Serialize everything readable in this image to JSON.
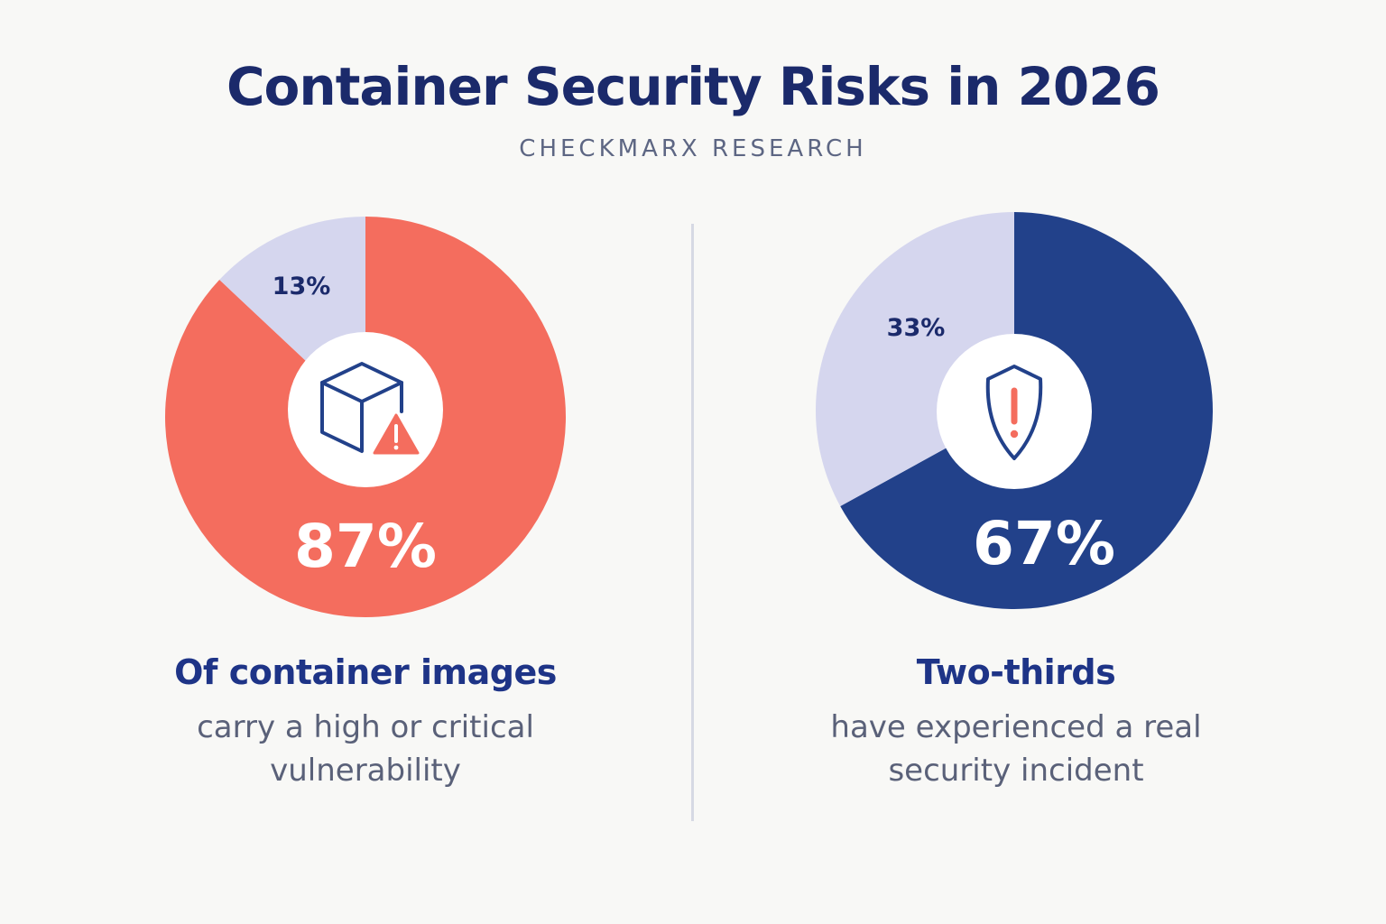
{
  "header": {
    "title": "Container Security Risks in 2026",
    "subtitle": "CHECKMARX RESEARCH"
  },
  "chart_data": [
    {
      "type": "pie",
      "slices": [
        {
          "label": "87%",
          "value": 87,
          "color": "#f46d5e"
        },
        {
          "label": "13%",
          "value": 13,
          "color": "#d5d6ee"
        }
      ],
      "headline": "Of container images",
      "description": [
        "carry a high or critical",
        "vulnerability"
      ],
      "icon": "container-warning-icon",
      "accent": "#f46d5e"
    },
    {
      "type": "pie",
      "slices": [
        {
          "label": "67%",
          "value": 67,
          "color": "#22418a"
        },
        {
          "label": "33%",
          "value": 33,
          "color": "#d5d6ee"
        }
      ],
      "headline": "Two-thirds",
      "description": [
        "have experienced a real",
        "security incident"
      ],
      "icon": "shield-alert-icon",
      "accent": "#22418a"
    }
  ],
  "colors": {
    "title": "#1b2a6b",
    "subtitle": "#5d6683",
    "description": "#5a6179",
    "warning": "#f46d5e",
    "icon_stroke": "#22418a",
    "background": "#f8f8f6"
  }
}
